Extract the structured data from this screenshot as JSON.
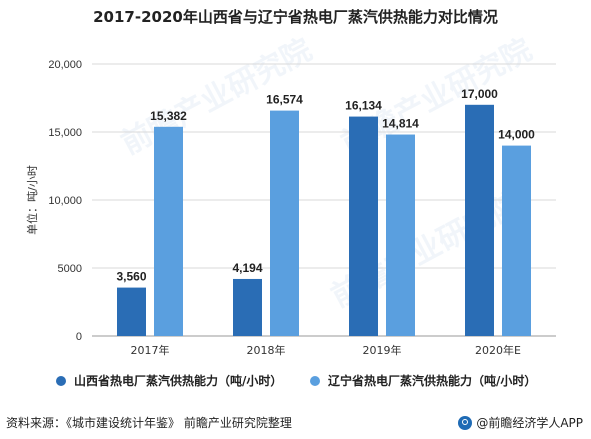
{
  "title": "2017-2020年山西省与辽宁省热电厂蒸汽供热能力对比情况",
  "watermark_text": "前瞻产业研究院",
  "chart_data": {
    "type": "bar",
    "categories": [
      "2017年",
      "2018年",
      "2019年",
      "2020年E"
    ],
    "series": [
      {
        "name": "山西省热电厂蒸汽供热能力（吨/小时）",
        "values": [
          3560,
          4194,
          16134,
          17000
        ],
        "labels": [
          "3,560",
          "4,194",
          "16,134",
          "17,000"
        ],
        "color": "#2a6db5"
      },
      {
        "name": "辽宁省热电厂蒸汽供热能力（吨/小时）",
        "values": [
          15382,
          16574,
          14814,
          14000
        ],
        "labels": [
          "15,382",
          "16,574",
          "14,814",
          "14,000"
        ],
        "color": "#5a9fdf"
      }
    ],
    "ylabel": "单位：吨/小时",
    "ylim": [
      0,
      20000
    ],
    "yticks": [
      0,
      5000,
      10000,
      15000,
      20000
    ],
    "ytick_labels": [
      "0",
      "5000",
      "10,000",
      "15,000",
      "20,000"
    ],
    "grid": true,
    "legend_position": "bottom"
  },
  "footer": {
    "source": "资料来源：《城市建设统计年鉴》 前瞻产业研究院整理",
    "brand": "@前瞻经济学人APP"
  }
}
